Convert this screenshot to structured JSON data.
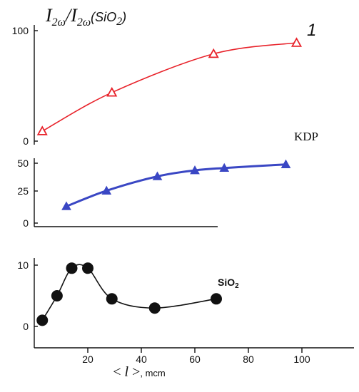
{
  "chart_data": [
    {
      "type": "line",
      "title": "I2ω/I2ω(SiO2)",
      "title_parts": {
        "I": "I",
        "omega_sub": "2ω",
        "slash": "/",
        "paren_open": "(SiO",
        "paren_sub": "2",
        "paren_close": ")"
      },
      "yticks": [
        "0",
        "100"
      ],
      "ylim": [
        0,
        100
      ],
      "xlim": [
        0,
        120
      ],
      "annotation": "1",
      "series": [
        {
          "marker": "open-triangle",
          "color": "#e8222a",
          "x": [
            3,
            29,
            67,
            98
          ],
          "y": [
            9,
            44,
            79,
            89
          ]
        }
      ]
    },
    {
      "type": "line",
      "yticks": [
        "0",
        "25",
        "50"
      ],
      "ylim": [
        0,
        50
      ],
      "xlim": [
        0,
        120
      ],
      "annotation": "KDP",
      "series": [
        {
          "marker": "filled-triangle",
          "color": "#3a47c4",
          "x": [
            12,
            27,
            46,
            60,
            71,
            94
          ],
          "y": [
            14,
            27,
            39,
            44,
            46,
            49
          ]
        }
      ]
    },
    {
      "type": "line",
      "yticks": [
        "0",
        "10"
      ],
      "ylim": [
        0,
        10
      ],
      "xlim": [
        0,
        120
      ],
      "annotation": "SiO2",
      "annotation_parts": {
        "main": "SiO",
        "sub": "2"
      },
      "xticks": [
        "20",
        "40",
        "60",
        "80",
        "100"
      ],
      "xlabel": "< l >, mcm",
      "xlabel_parts": {
        "open": "< ",
        "l": "l",
        "close": " >",
        "unit": ", mcm"
      },
      "series": [
        {
          "marker": "filled-circle",
          "color": "#111111",
          "x": [
            3,
            8.5,
            14,
            20,
            29,
            45,
            68
          ],
          "y": [
            1,
            5,
            9.5,
            9.5,
            4.5,
            3,
            4.5
          ]
        }
      ]
    }
  ]
}
